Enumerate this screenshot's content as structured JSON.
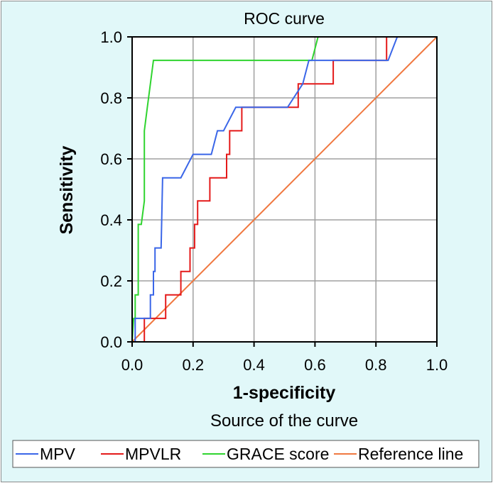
{
  "chart_data": {
    "type": "line",
    "title": "ROC curve",
    "xlabel": "1-specificity",
    "ylabel": "Sensitivity",
    "xlim": [
      0,
      1
    ],
    "ylim": [
      0,
      1
    ],
    "xticks": [
      "0.0",
      "0.2",
      "0.4",
      "0.6",
      "0.8",
      "1.0"
    ],
    "yticks": [
      "0.0",
      "0.2",
      "0.4",
      "0.6",
      "0.8",
      "1.0"
    ],
    "grid": true,
    "legend_title": "Source of the curve",
    "legend_position": "bottom",
    "series": [
      {
        "name": "MPV",
        "color": "#3a66e8",
        "points": [
          [
            0,
            0
          ],
          [
            0.01,
            0
          ],
          [
            0.01,
            0.077
          ],
          [
            0.06,
            0.077
          ],
          [
            0.06,
            0.154
          ],
          [
            0.07,
            0.154
          ],
          [
            0.07,
            0.231
          ],
          [
            0.075,
            0.231
          ],
          [
            0.075,
            0.308
          ],
          [
            0.095,
            0.308
          ],
          [
            0.1,
            0.538
          ],
          [
            0.16,
            0.538
          ],
          [
            0.2,
            0.615
          ],
          [
            0.26,
            0.615
          ],
          [
            0.28,
            0.692
          ],
          [
            0.3,
            0.692
          ],
          [
            0.34,
            0.769
          ],
          [
            0.51,
            0.769
          ],
          [
            0.56,
            0.846
          ],
          [
            0.58,
            0.923
          ],
          [
            0.84,
            0.923
          ],
          [
            0.87,
            1
          ],
          [
            1,
            1
          ]
        ]
      },
      {
        "name": "MPVLR",
        "color": "#e41a1a",
        "points": [
          [
            0,
            0
          ],
          [
            0.04,
            0
          ],
          [
            0.04,
            0.077
          ],
          [
            0.11,
            0.077
          ],
          [
            0.11,
            0.154
          ],
          [
            0.16,
            0.154
          ],
          [
            0.16,
            0.231
          ],
          [
            0.19,
            0.231
          ],
          [
            0.19,
            0.308
          ],
          [
            0.205,
            0.308
          ],
          [
            0.205,
            0.385
          ],
          [
            0.215,
            0.385
          ],
          [
            0.215,
            0.462
          ],
          [
            0.255,
            0.462
          ],
          [
            0.255,
            0.538
          ],
          [
            0.31,
            0.538
          ],
          [
            0.31,
            0.615
          ],
          [
            0.32,
            0.615
          ],
          [
            0.32,
            0.692
          ],
          [
            0.36,
            0.692
          ],
          [
            0.36,
            0.769
          ],
          [
            0.545,
            0.769
          ],
          [
            0.545,
            0.846
          ],
          [
            0.66,
            0.846
          ],
          [
            0.66,
            0.923
          ],
          [
            0.835,
            0.923
          ],
          [
            0.835,
            1
          ],
          [
            1,
            1
          ]
        ]
      },
      {
        "name": "GRACE score",
        "color": "#2fd42f",
        "points": [
          [
            0,
            0
          ],
          [
            0.005,
            0.077
          ],
          [
            0.01,
            0.077
          ],
          [
            0.01,
            0.154
          ],
          [
            0.02,
            0.154
          ],
          [
            0.02,
            0.385
          ],
          [
            0.03,
            0.385
          ],
          [
            0.04,
            0.462
          ],
          [
            0.04,
            0.692
          ],
          [
            0.05,
            0.769
          ],
          [
            0.06,
            0.846
          ],
          [
            0.07,
            0.923
          ],
          [
            0.59,
            0.923
          ],
          [
            0.61,
            1
          ],
          [
            1,
            1
          ]
        ]
      },
      {
        "name": "Reference line",
        "color": "#f07840",
        "points": [
          [
            0,
            0
          ],
          [
            1,
            1
          ]
        ]
      }
    ]
  }
}
